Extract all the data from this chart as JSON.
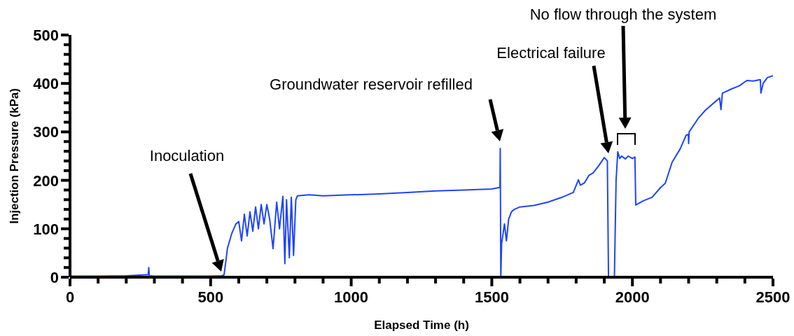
{
  "chart_data": {
    "type": "line",
    "xlabel": "Elapsed Time (h)",
    "ylabel": "Injection Pressure (kPa)",
    "xlim": [
      0,
      2500
    ],
    "ylim": [
      0,
      500
    ],
    "xticks": [
      0,
      {
        "value": 100,
        "label": null
      },
      {
        "value": 200,
        "label": null
      },
      {
        "value": 300,
        "label": null
      },
      {
        "value": 400,
        "label": null
      },
      500,
      {
        "value": 600,
        "label": null
      },
      {
        "value": 700,
        "label": null
      },
      {
        "value": 800,
        "label": null
      },
      {
        "value": 900,
        "label": null
      },
      1000,
      {
        "value": 1100,
        "label": null
      },
      {
        "value": 1200,
        "label": null
      },
      {
        "value": 1300,
        "label": null
      },
      {
        "value": 1400,
        "label": null
      },
      1500,
      {
        "value": 1600,
        "label": null
      },
      {
        "value": 1700,
        "label": null
      },
      {
        "value": 1800,
        "label": null
      },
      {
        "value": 1900,
        "label": null
      },
      2000,
      {
        "value": 2100,
        "label": null
      },
      {
        "value": 2200,
        "label": null
      },
      {
        "value": 2300,
        "label": null
      },
      {
        "value": 2400,
        "label": null
      },
      2500
    ],
    "yticks": [
      0,
      {
        "value": 20,
        "label": null
      },
      {
        "value": 40,
        "label": null
      },
      {
        "value": 60,
        "label": null
      },
      {
        "value": 80,
        "label": null
      },
      100,
      {
        "value": 120,
        "label": null
      },
      {
        "value": 140,
        "label": null
      },
      {
        "value": 160,
        "label": null
      },
      {
        "value": 180,
        "label": null
      },
      200,
      {
        "value": 220,
        "label": null
      },
      {
        "value": 240,
        "label": null
      },
      {
        "value": 260,
        "label": null
      },
      {
        "value": 280,
        "label": null
      },
      300,
      {
        "value": 320,
        "label": null
      },
      {
        "value": 340,
        "label": null
      },
      {
        "value": 360,
        "label": null
      },
      {
        "value": 380,
        "label": null
      },
      400,
      {
        "value": 420,
        "label": null
      },
      {
        "value": 440,
        "label": null
      },
      {
        "value": 460,
        "label": null
      },
      {
        "value": 480,
        "label": null
      },
      500
    ],
    "grid": false,
    "marker": "none",
    "line_style": "solid",
    "series": [
      {
        "color": "#1f45fc",
        "x": [
          0,
          2,
          5,
          100,
          200,
          270,
          278,
          280,
          282,
          300,
          400,
          500,
          540,
          548,
          560,
          575,
          590,
          600,
          610,
          620,
          630,
          640,
          650,
          660,
          670,
          680,
          690,
          700,
          710,
          722,
          735,
          745,
          757,
          764,
          770,
          780,
          787,
          795,
          803,
          809,
          850,
          900,
          1000,
          1100,
          1200,
          1300,
          1400,
          1500,
          1525,
          1529,
          1530,
          1532,
          1535,
          1545,
          1552,
          1560,
          1570,
          1580,
          1600,
          1650,
          1700,
          1750,
          1790,
          1808,
          1815,
          1830,
          1845,
          1860,
          1880,
          1900,
          1911,
          1915,
          1917,
          1936,
          1942,
          1948,
          1955,
          1962,
          1975,
          1985,
          2000,
          2009,
          2012,
          2040,
          2070,
          2100,
          2117,
          2141,
          2170,
          2191,
          2199,
          2200,
          2202,
          2233,
          2260,
          2290,
          2310,
          2315,
          2320,
          2350,
          2380,
          2407,
          2430,
          2455,
          2457,
          2465,
          2480,
          2500
        ],
        "values": [
          10,
          2,
          2,
          2,
          3,
          5,
          5,
          20,
          3,
          2,
          2,
          2,
          3,
          5,
          60,
          90,
          110,
          115,
          75,
          130,
          85,
          135,
          95,
          145,
          100,
          150,
          110,
          150,
          120,
          59,
          155,
          100,
          167,
          28,
          160,
          40,
          165,
          45,
          160,
          168,
          170,
          168,
          170,
          172,
          175,
          178,
          180,
          182,
          185,
          185,
          266,
          0,
          70,
          110,
          75,
          120,
          135,
          140,
          145,
          148,
          155,
          165,
          175,
          201,
          190,
          195,
          210,
          215,
          230,
          247,
          240,
          0,
          0,
          0,
          200,
          259,
          245,
          250,
          244,
          250,
          245,
          248,
          149,
          158,
          165,
          185,
          194,
          237,
          265,
          293,
          295,
          276,
          300,
          327,
          345,
          360,
          370,
          346,
          380,
          388,
          395,
          406,
          405,
          408,
          380,
          400,
          412,
          416
        ]
      }
    ],
    "annotations": [
      "Inoculation",
      "Groundwater reservoir refilled",
      "Electrical failure",
      "No flow through the system"
    ]
  }
}
